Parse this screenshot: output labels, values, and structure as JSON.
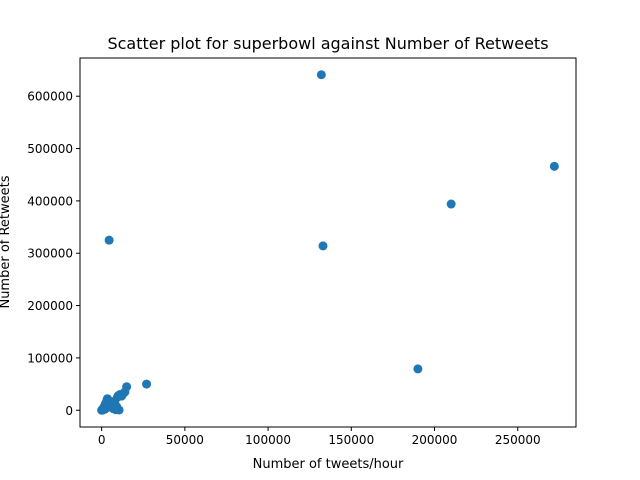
{
  "chart_data": {
    "type": "scatter",
    "title": "Scatter plot for superbowl against Number of Retweets",
    "xlabel": "Number of tweets/hour",
    "ylabel": "Number of Retweets",
    "xlim": [
      -13000,
      285000
    ],
    "ylim": [
      -32000,
      673000
    ],
    "xticks": [
      0,
      50000,
      100000,
      150000,
      200000,
      250000
    ],
    "yticks": [
      0,
      100000,
      200000,
      300000,
      400000,
      500000,
      600000
    ],
    "grid": false,
    "marker_color": "#1f77b4",
    "series": [
      {
        "points": [
          [
            0,
            0
          ],
          [
            200,
            500
          ],
          [
            400,
            1000
          ],
          [
            600,
            300
          ],
          [
            800,
            2500
          ],
          [
            1000,
            1500
          ],
          [
            1200,
            5000
          ],
          [
            1500,
            3000
          ],
          [
            1800,
            8000
          ],
          [
            2000,
            2000
          ],
          [
            2200,
            12000
          ],
          [
            2500,
            4000
          ],
          [
            2800,
            15000
          ],
          [
            3000,
            6000
          ],
          [
            3200,
            20000
          ],
          [
            3500,
            22000
          ],
          [
            3800,
            9000
          ],
          [
            4000,
            18000
          ],
          [
            4500,
            11000
          ],
          [
            5000,
            14000
          ],
          [
            5500,
            6000
          ],
          [
            6000,
            16000
          ],
          [
            6500,
            9000
          ],
          [
            7000,
            3000
          ],
          [
            7500,
            12000
          ],
          [
            8000,
            18000
          ],
          [
            8500,
            1000
          ],
          [
            9000,
            7000
          ],
          [
            9500,
            25000
          ],
          [
            10000,
            28000
          ],
          [
            10500,
            500
          ],
          [
            11000,
            30000
          ],
          [
            12000,
            27000
          ],
          [
            13000,
            32000
          ],
          [
            14000,
            35000
          ],
          [
            15000,
            45000
          ],
          [
            27000,
            50000
          ],
          [
            4500,
            325000
          ],
          [
            132000,
            641000
          ],
          [
            133000,
            314000
          ],
          [
            190000,
            79000
          ],
          [
            210000,
            394000
          ],
          [
            272000,
            466000
          ]
        ]
      }
    ]
  }
}
